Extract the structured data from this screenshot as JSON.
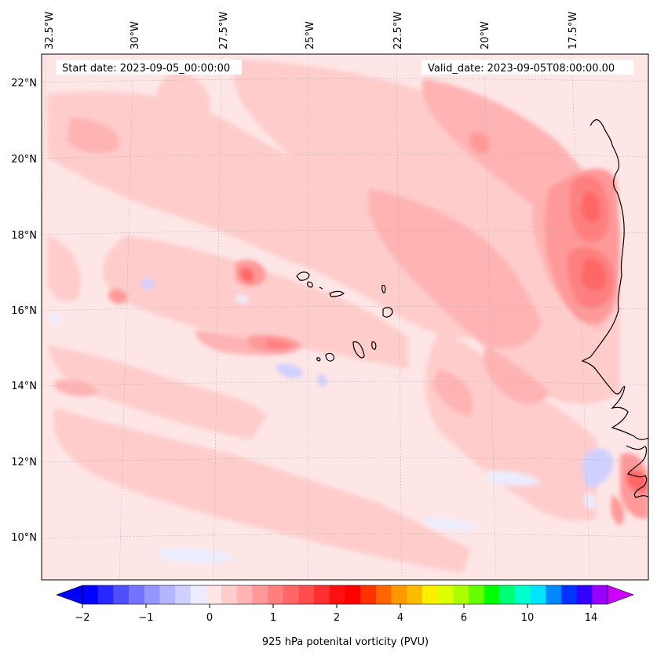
{
  "map": {
    "start_date": "Start date: 2023-09-05_00:00:00",
    "valid_date": "Valid_date: 2023-09-05T08:00:00.00",
    "lon_labels": [
      "32.5°W",
      "30°W",
      "27.5°W",
      "25°W",
      "22.5°W",
      "20°W",
      "17.5°W"
    ],
    "lat_labels": [
      "22°N",
      "20°N",
      "18°N",
      "16°N",
      "14°N",
      "12°N",
      "10°N"
    ]
  },
  "colorbar": {
    "label": "925 hPa potenital vorticity (PVU)",
    "ticks": [
      "−2",
      "−1",
      "0",
      "1",
      "2",
      "4",
      "6",
      "10",
      "14"
    ],
    "colors": [
      "#0000ff",
      "#2727ff",
      "#4f4fff",
      "#7373ff",
      "#9595ff",
      "#b3b3ff",
      "#d0d0ff",
      "#ececff",
      "#ffe6e6",
      "#ffcccc",
      "#ffb3b3",
      "#ff9999",
      "#ff7f7f",
      "#ff6666",
      "#ff4c4c",
      "#ff2f2f",
      "#ff1010",
      "#ff0000",
      "#ff3300",
      "#ff6600",
      "#ff9900",
      "#ffbb00",
      "#ffee00",
      "#ddff00",
      "#aaff00",
      "#66ff00",
      "#00ff00",
      "#00ff77",
      "#00ffcc",
      "#00e5ff",
      "#0088ff",
      "#0033ff",
      "#3300ff",
      "#9900ff"
    ],
    "extend_colors": {
      "low": "#0000ff",
      "high": "#cc00ff"
    }
  }
}
